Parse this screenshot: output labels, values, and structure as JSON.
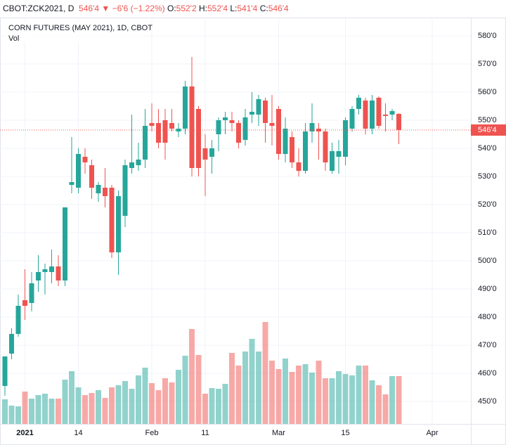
{
  "header": {
    "symbol": "CBOT:ZCK2021, D",
    "last": "546'4",
    "arrow": "▼",
    "change": "−6'6 (−1.22%)",
    "o_label": "O:",
    "o": "552'2",
    "h_label": "H:",
    "h": "552'4",
    "l_label": "L:",
    "l": "541'4",
    "c_label": "C:",
    "c": "546'4"
  },
  "chart_data": {
    "type": "candlestick",
    "title": "CORN FUTURES (MAY 2021), 1D, CBOT",
    "volume_label": "Vol",
    "up_color": "#26a69a",
    "down_color": "#ef5350",
    "grid": true,
    "open": [
      455.5,
      467,
      474,
      486,
      485,
      493,
      496,
      496,
      498,
      493,
      527,
      526,
      537,
      534,
      524,
      526,
      526,
      503,
      516,
      533,
      534,
      536,
      549,
      549,
      550,
      549,
      546,
      547,
      562,
      554,
      540,
      537,
      545,
      550,
      550,
      549,
      543,
      552,
      552,
      557,
      549,
      554,
      538,
      544,
      535,
      532,
      546,
      547,
      546,
      532,
      537,
      537,
      547,
      554,
      557,
      547,
      558,
      552,
      552,
      552.25
    ],
    "high": [
      466,
      476,
      488,
      497,
      496,
      502,
      499,
      504,
      502,
      519,
      544,
      540,
      540,
      536,
      528,
      533,
      527,
      525,
      536,
      552,
      542,
      554,
      556,
      554,
      554,
      554,
      549,
      564,
      572.5,
      555,
      545,
      543,
      551,
      553,
      553,
      550,
      554,
      560,
      559,
      558,
      559,
      555,
      551,
      546,
      540,
      549,
      556,
      549,
      547,
      542,
      543,
      551,
      555,
      559,
      558,
      559,
      558.5,
      556,
      554,
      552.5
    ],
    "low": [
      452,
      465,
      473,
      479,
      482,
      489,
      488,
      492,
      491,
      491,
      524,
      524,
      531,
      522,
      521,
      519,
      501,
      495,
      512,
      531,
      532,
      533,
      546,
      540,
      536,
      546,
      544,
      545,
      530,
      530,
      523,
      531,
      539,
      545,
      546,
      540,
      541,
      549,
      548,
      542,
      541,
      536,
      535,
      533,
      530,
      531,
      542,
      536,
      532,
      531,
      531,
      534,
      546,
      552,
      545,
      545,
      547,
      546,
      550,
      541.5
    ],
    "close": [
      466,
      474,
      484,
      484,
      492,
      496,
      497,
      498,
      493,
      519,
      528,
      538,
      535,
      526,
      527,
      523,
      503,
      523,
      534,
      535,
      536,
      548,
      548,
      542,
      542,
      547,
      547,
      562,
      533,
      533,
      536,
      540,
      550,
      551,
      549,
      542,
      551,
      553,
      557.5,
      549,
      548,
      538,
      547,
      535,
      532,
      546,
      549,
      546,
      535,
      539,
      539,
      550,
      554,
      558,
      547,
      557,
      548,
      551.5,
      553.25,
      546.5
    ],
    "volume": [
      35,
      26,
      25,
      46,
      36,
      41,
      43,
      36,
      36,
      63,
      75,
      52,
      41,
      44,
      48,
      37,
      52,
      55,
      61,
      50,
      69,
      80,
      58,
      48,
      65,
      59,
      77,
      97,
      135,
      98,
      43,
      51,
      50,
      57,
      101,
      83,
      103,
      121,
      103,
      145,
      90,
      78,
      93,
      74,
      83,
      85,
      73,
      90,
      65,
      65,
      75,
      71,
      69,
      83,
      83,
      62,
      55,
      42,
      68,
      68
    ],
    "ylim": [
      442,
      586
    ],
    "yticks": [
      {
        "value": 450,
        "label": "450'0"
      },
      {
        "value": 460,
        "label": "460'0"
      },
      {
        "value": 470,
        "label": "470'0"
      },
      {
        "value": 480,
        "label": "480'0"
      },
      {
        "value": 490,
        "label": "490'0"
      },
      {
        "value": 500,
        "label": "500'0"
      },
      {
        "value": 510,
        "label": "510'0"
      },
      {
        "value": 520,
        "label": "520'0"
      },
      {
        "value": 530,
        "label": "530'0"
      },
      {
        "value": 540,
        "label": "540'0"
      },
      {
        "value": 550,
        "label": "550'0"
      },
      {
        "value": 560,
        "label": "560'0"
      },
      {
        "value": 570,
        "label": "570'0"
      },
      {
        "value": 580,
        "label": "580'0"
      }
    ],
    "xticks": [
      {
        "value": 3,
        "label": "2021"
      },
      {
        "value": 11,
        "label": "14"
      },
      {
        "value": 22,
        "label": "Feb"
      },
      {
        "value": 30,
        "label": "11"
      },
      {
        "value": 41,
        "label": "Mar"
      },
      {
        "value": 51,
        "label": "15"
      },
      {
        "value": 64,
        "label": "Apr"
      }
    ],
    "last_price": {
      "value": 546.5,
      "label": "546'4"
    }
  }
}
